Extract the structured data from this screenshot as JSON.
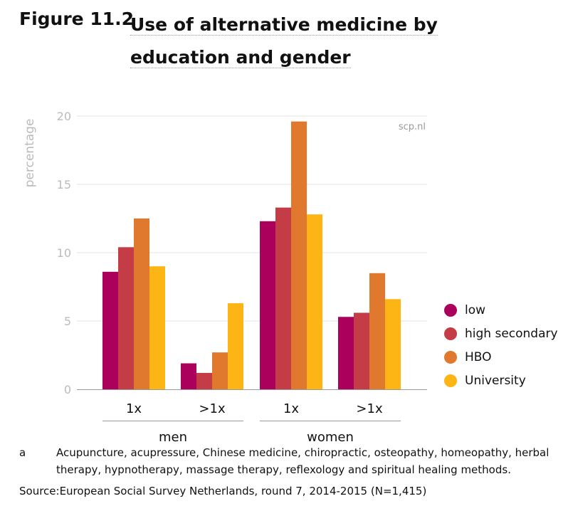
{
  "figure_label": "Figure 11.2",
  "title": "Use of alternative medicine by education and gender",
  "chart_data": {
    "type": "bar",
    "title": "Use of alternative medicine by education and gender",
    "ylabel": "percentage",
    "ylim": [
      0,
      20
    ],
    "yticks": [
      "0",
      "5",
      "10",
      "15",
      "20"
    ],
    "grid": true,
    "watermark": "scp.nl",
    "categories": [
      "1x",
      ">1x",
      "1x",
      ">1x"
    ],
    "groups": [
      {
        "label": "men",
        "span": [
          0,
          1
        ]
      },
      {
        "label": "women",
        "span": [
          2,
          3
        ]
      }
    ],
    "legend_position": "right",
    "series": [
      {
        "name": "low",
        "color": "#ab005c",
        "values": [
          8.6,
          1.9,
          12.3,
          5.3
        ]
      },
      {
        "name": "high secondary",
        "color": "#c43c45",
        "values": [
          10.4,
          1.2,
          13.3,
          5.6
        ]
      },
      {
        "name": "HBO",
        "color": "#e0792e",
        "values": [
          12.5,
          2.7,
          19.6,
          8.5
        ]
      },
      {
        "name": "University",
        "color": "#fdb515",
        "values": [
          9.0,
          6.3,
          12.8,
          6.6
        ]
      }
    ]
  },
  "footnote_marker": "a",
  "footnote": "Acupuncture, acupressure, Chinese medicine, chiropractic, osteopathy, homeopathy, herbal therapy, hypnotherapy, massage therapy, reflexology and spiritual healing methods.",
  "source": "Source:European Social Survey Netherlands, round 7, 2014-2015 (N=1,415)"
}
